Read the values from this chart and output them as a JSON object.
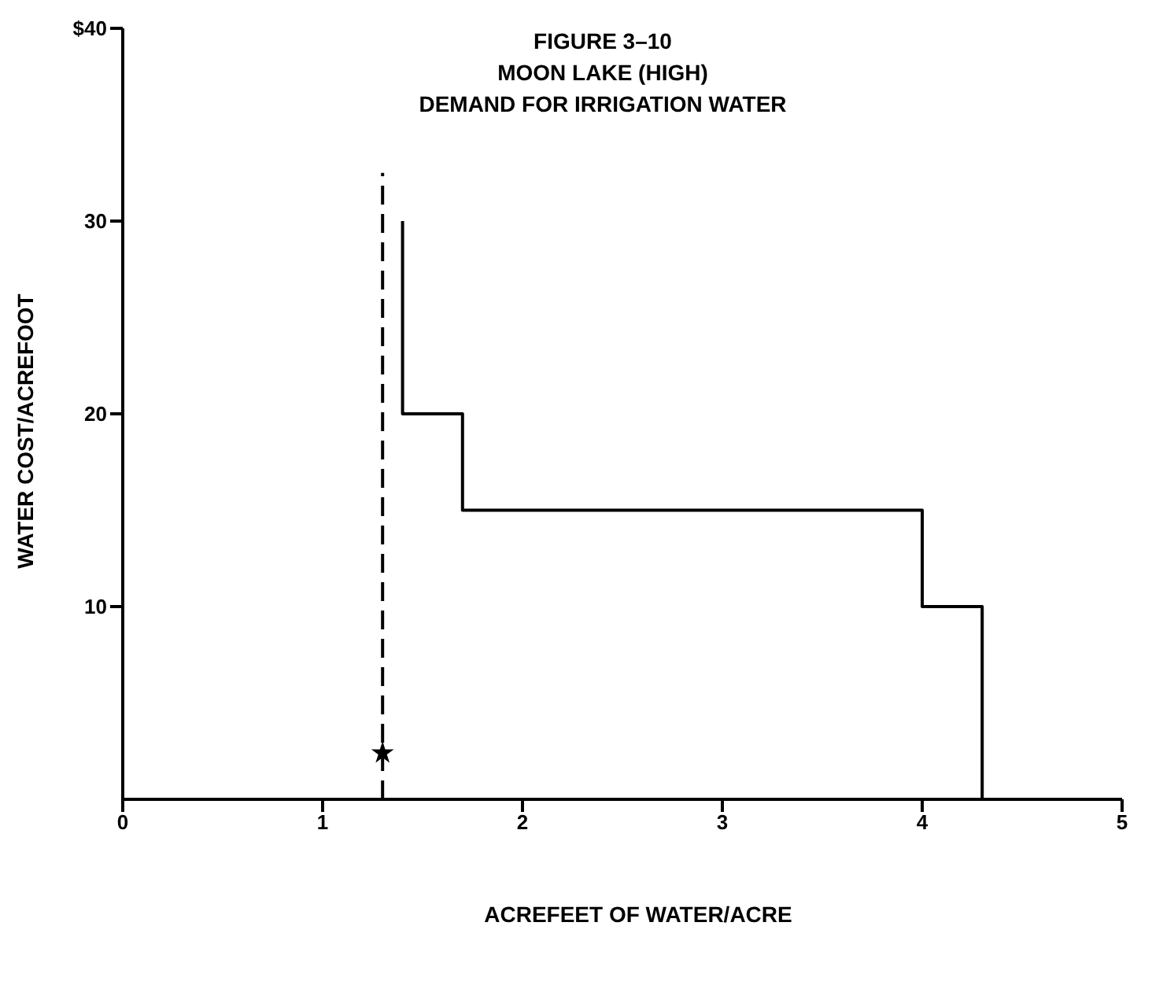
{
  "chart_data": {
    "type": "line",
    "title": "FIGURE 3–10",
    "subtitle": "MOON LAKE (HIGH)\nDEMAND FOR IRRIGATION WATER",
    "xlabel": "ACREFEET OF WATER/ACRE",
    "ylabel": "WATER COST/ACREFOOT",
    "xlim": [
      0,
      5
    ],
    "xticks": [
      0,
      1,
      2,
      3,
      4,
      5
    ],
    "ylim": [
      0,
      40
    ],
    "yticks": [
      10,
      20,
      30,
      {
        "value": 40,
        "label": "$40"
      }
    ],
    "series": [
      {
        "color": "#000000",
        "x": [
          1.4,
          1.4,
          1.7,
          1.7,
          4.0,
          4.0,
          4.3,
          4.3
        ],
        "values": [
          30,
          20,
          20,
          15,
          15,
          10,
          10,
          0
        ],
        "line_style": "solid",
        "marker": "none"
      },
      {
        "type": "line",
        "color": "#000000",
        "x": [
          1.3,
          1.3
        ],
        "values": [
          0,
          32.5
        ],
        "line_style": "dashed",
        "marker": "none"
      },
      {
        "type": "scatter",
        "color": "#000000",
        "x": [
          1.3
        ],
        "values": [
          2.4
        ],
        "marker": "star"
      }
    ]
  }
}
